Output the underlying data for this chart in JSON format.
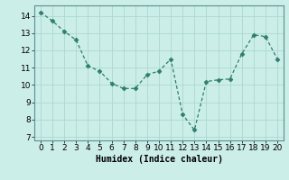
{
  "x": [
    0,
    1,
    2,
    3,
    4,
    5,
    6,
    7,
    8,
    9,
    10,
    11,
    12,
    13,
    14,
    15,
    16,
    17,
    18,
    19,
    20
  ],
  "y": [
    14.2,
    13.7,
    13.1,
    12.6,
    11.1,
    10.8,
    10.1,
    9.8,
    9.8,
    10.6,
    10.8,
    11.5,
    8.3,
    7.4,
    10.2,
    10.3,
    10.35,
    11.8,
    12.9,
    12.8,
    11.5
  ],
  "line_color": "#2e7d6e",
  "marker": "D",
  "marker_size": 2.5,
  "bg_color": "#cceee8",
  "grid_color": "#aad8d0",
  "xlabel": "Humidex (Indice chaleur)",
  "ylim": [
    6.8,
    14.6
  ],
  "xlim": [
    -0.5,
    20.5
  ],
  "yticks": [
    7,
    8,
    9,
    10,
    11,
    12,
    13,
    14
  ],
  "xticks": [
    0,
    1,
    2,
    3,
    4,
    5,
    6,
    7,
    8,
    9,
    10,
    11,
    12,
    13,
    14,
    15,
    16,
    17,
    18,
    19,
    20
  ],
  "xlabel_fontsize": 7,
  "tick_fontsize": 6.5,
  "linewidth": 0.9
}
